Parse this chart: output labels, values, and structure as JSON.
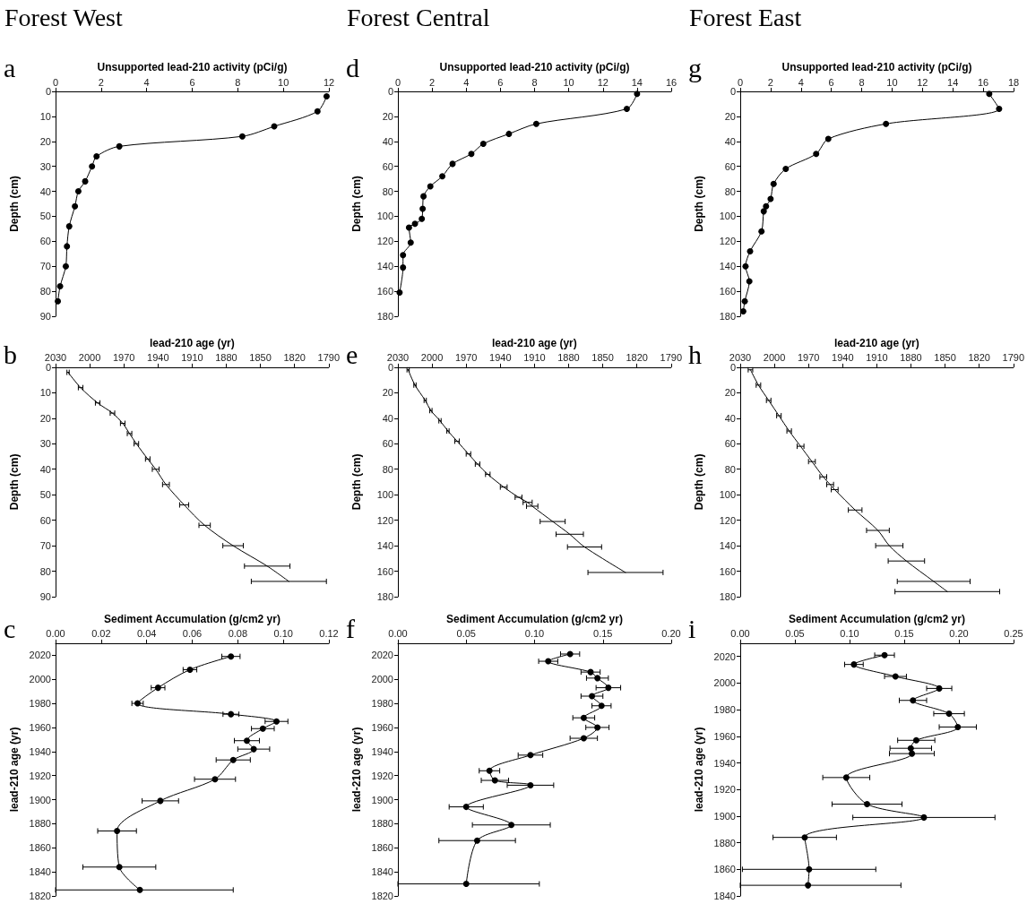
{
  "chart_data": [
    {
      "type": "line",
      "title": "Forest West",
      "xlabel": "Unsupported lead-210 activity (pCi/g)",
      "ylabel": "Depth (cm)",
      "annotations": [
        "a"
      ],
      "color": "#000000",
      "marker": "circle",
      "x": [
        11.9,
        11.5,
        9.6,
        8.2,
        2.8,
        1.8,
        1.6,
        1.3,
        1.0,
        0.85,
        0.6,
        0.5,
        0.45,
        0.2,
        0.1
      ],
      "values": [
        2,
        8,
        14,
        18,
        22,
        26,
        30,
        36,
        40,
        46,
        54,
        62,
        70,
        78,
        84
      ],
      "xlim": [
        0,
        12
      ],
      "xticks": [
        0,
        2,
        4,
        6,
        8,
        10,
        12
      ],
      "ylim": [
        90,
        0
      ],
      "yticks": [
        0,
        10,
        20,
        30,
        40,
        50,
        60,
        70,
        80,
        90
      ]
    },
    {
      "type": "line",
      "title": "Forest Central",
      "xlabel": "Unsupported lead-210 activity (pCi/g)",
      "ylabel": "Depth (cm)",
      "annotations": [
        "d"
      ],
      "color": "#000000",
      "marker": "circle",
      "x": [
        14.0,
        13.4,
        8.1,
        6.5,
        5.0,
        4.3,
        3.2,
        2.6,
        1.9,
        1.5,
        1.45,
        1.4,
        1.0,
        0.65,
        0.75,
        0.3,
        0.3,
        0.1
      ],
      "values": [
        2,
        14,
        26,
        34,
        42,
        50,
        58,
        68,
        76,
        84,
        94,
        102,
        106,
        109,
        121,
        131,
        141,
        161
      ],
      "xlim": [
        0,
        16
      ],
      "xticks": [
        0,
        2,
        4,
        6,
        8,
        10,
        12,
        14,
        16
      ],
      "ylim": [
        180,
        0
      ],
      "yticks": [
        0,
        20,
        40,
        60,
        80,
        100,
        120,
        140,
        160,
        180
      ]
    },
    {
      "type": "line",
      "title": "Forest East",
      "xlabel": "Unsupported lead-210 activity (pCi/g)",
      "ylabel": "Depth (cm)",
      "annotations": [
        "g"
      ],
      "color": "#000000",
      "marker": "circle",
      "x": [
        16.4,
        17.05,
        9.6,
        5.8,
        5.0,
        3.0,
        2.2,
        2.0,
        1.7,
        1.55,
        1.4,
        0.65,
        0.35,
        0.6,
        0.3,
        0.2
      ],
      "values": [
        2,
        14,
        26,
        38,
        50,
        62,
        74,
        86,
        92,
        96,
        112,
        128,
        140,
        152,
        168,
        176
      ],
      "xlim": [
        0,
        18
      ],
      "xticks": [
        0,
        2,
        4,
        6,
        8,
        10,
        12,
        14,
        16,
        18
      ],
      "ylim": [
        180,
        0
      ],
      "yticks": [
        0,
        20,
        40,
        60,
        80,
        100,
        120,
        140,
        160,
        180
      ]
    },
    {
      "type": "line",
      "xlabel": "lead-210 age (yr)",
      "ylabel": "Depth (cm)",
      "annotations": [
        "b"
      ],
      "color": "#000000",
      "marker": "none",
      "x": [
        2019,
        2008,
        1993,
        1980,
        1971,
        1965,
        1959,
        1949,
        1942,
        1933,
        1917,
        1899,
        1874,
        1844,
        1825
      ],
      "values": [
        2,
        8,
        14,
        18,
        22,
        26,
        30,
        36,
        40,
        46,
        54,
        62,
        70,
        78,
        84
      ],
      "xerrors": [
        1,
        2,
        2,
        2,
        2,
        2,
        2,
        2,
        3,
        3,
        4,
        5,
        9,
        20,
        33
      ],
      "xlim": [
        2030,
        1790
      ],
      "xticks": [
        2030,
        2000,
        1970,
        1940,
        1910,
        1880,
        1850,
        1820,
        1790
      ],
      "ylim": [
        90,
        0
      ],
      "yticks": [
        0,
        10,
        20,
        30,
        40,
        50,
        60,
        70,
        80,
        90
      ]
    },
    {
      "type": "line",
      "xlabel": "lead-210 age (yr)",
      "ylabel": "Depth (cm)",
      "annotations": [
        "e"
      ],
      "color": "#000000",
      "marker": "none",
      "x": [
        2021,
        2015,
        2006,
        2001,
        1993,
        1986,
        1978,
        1968,
        1960,
        1951,
        1937,
        1924,
        1916,
        1912,
        1894,
        1879,
        1866,
        1830
      ],
      "values": [
        2,
        14,
        26,
        34,
        42,
        50,
        58,
        68,
        76,
        84,
        94,
        102,
        106,
        109,
        121,
        131,
        141,
        161
      ],
      "xerrors": [
        1,
        1,
        1,
        1,
        1,
        1,
        2,
        2,
        2,
        2,
        3,
        3,
        4,
        5,
        11,
        12,
        15,
        33
      ],
      "xlim": [
        2030,
        1790
      ],
      "xticks": [
        2030,
        2000,
        1970,
        1940,
        1910,
        1880,
        1850,
        1820,
        1790
      ],
      "ylim": [
        180,
        0
      ],
      "yticks": [
        0,
        20,
        40,
        60,
        80,
        100,
        120,
        140,
        160,
        180
      ]
    },
    {
      "type": "line",
      "xlabel": "lead-210 age (yr)",
      "ylabel": "Depth (cm)",
      "annotations": [
        "h"
      ],
      "color": "#000000",
      "marker": "none",
      "x": [
        2021,
        2014,
        2005,
        1996,
        1987,
        1977,
        1967,
        1957,
        1951,
        1947,
        1929,
        1909,
        1899,
        1884,
        1860,
        1848
      ],
      "values": [
        2,
        14,
        26,
        38,
        50,
        62,
        74,
        86,
        92,
        96,
        112,
        128,
        140,
        152,
        168,
        176
      ],
      "xerrors": [
        2,
        2,
        2,
        2,
        2,
        3,
        3,
        3,
        3,
        3,
        6,
        10,
        12,
        16,
        32,
        46
      ],
      "xlim": [
        2030,
        1790
      ],
      "xticks": [
        2030,
        2000,
        1970,
        1940,
        1910,
        1880,
        1850,
        1820,
        1790
      ],
      "ylim": [
        180,
        0
      ],
      "yticks": [
        0,
        20,
        40,
        60,
        80,
        100,
        120,
        140,
        160,
        180
      ]
    },
    {
      "type": "line",
      "xlabel": "Sediment Accumulation (g/cm2 yr)",
      "ylabel": "lead-210 age (yr)",
      "annotations": [
        "c"
      ],
      "color": "#000000",
      "marker": "circle",
      "x": [
        0.077,
        0.059,
        0.045,
        0.036,
        0.077,
        0.097,
        0.091,
        0.084,
        0.087,
        0.078,
        0.07,
        0.046,
        0.027,
        0.028,
        0.037
      ],
      "values": [
        2019,
        2008,
        1993,
        1980,
        1971,
        1965,
        1959,
        1949,
        1942,
        1933,
        1917,
        1899,
        1874,
        1844,
        1825
      ],
      "xerrors": [
        0.004,
        0.003,
        0.003,
        0.0025,
        0.0035,
        0.005,
        0.005,
        0.0055,
        0.007,
        0.0075,
        0.009,
        0.008,
        0.0085,
        0.016,
        [
          0,
          0.078
        ]
      ],
      "xlim": [
        0,
        0.12
      ],
      "xticks": [
        {
          "value": 0,
          "label": "0.00"
        },
        {
          "value": 0.02,
          "label": "0.02"
        },
        {
          "value": 0.04,
          "label": "0.04"
        },
        {
          "value": 0.06,
          "label": "0.06"
        },
        {
          "value": 0.08,
          "label": "0.08"
        },
        {
          "value": 0.1,
          "label": "0.10"
        },
        {
          "value": 0.12,
          "label": "0.12"
        }
      ],
      "ylim": [
        1820,
        2030
      ],
      "yticks": [
        1820,
        1840,
        1860,
        1880,
        1900,
        1920,
        1940,
        1960,
        1980,
        2000,
        2020
      ]
    },
    {
      "type": "line",
      "xlabel": "Sediment Accumulation (g/cm2 yr)",
      "ylabel": "lead-210 age (yr)",
      "annotations": [
        "f"
      ],
      "color": "#000000",
      "marker": "circle",
      "x": [
        0.126,
        0.11,
        0.141,
        0.146,
        0.154,
        0.142,
        0.149,
        0.136,
        0.146,
        0.136,
        0.097,
        0.067,
        0.071,
        0.097,
        0.05,
        0.083,
        0.058,
        0.05
      ],
      "values": [
        2021,
        2015,
        2006,
        2001,
        1993,
        1986,
        1978,
        1968,
        1960,
        1951,
        1937,
        1924,
        1916,
        1912,
        1894,
        1879,
        1866,
        1830
      ],
      "xerrors": [
        0.007,
        0.007,
        0.007,
        0.008,
        0.009,
        0.008,
        0.007,
        0.008,
        0.0085,
        0.01,
        0.009,
        0.0075,
        0.01,
        0.017,
        0.0125,
        0.0285,
        0.028,
        [
          0,
          0.1035
        ]
      ],
      "xlim": [
        0,
        0.2
      ],
      "xticks": [
        {
          "value": 0,
          "label": "0.00"
        },
        {
          "value": 0.05,
          "label": "0.05"
        },
        {
          "value": 0.1,
          "label": "0.10"
        },
        {
          "value": 0.15,
          "label": "0.15"
        },
        {
          "value": 0.2,
          "label": "0.20"
        }
      ],
      "ylim": [
        1820,
        2030
      ],
      "yticks": [
        1820,
        1840,
        1860,
        1880,
        1900,
        1920,
        1940,
        1960,
        1980,
        2000,
        2020
      ]
    },
    {
      "type": "line",
      "xlabel": "Sediment Accumulation (g/cm2 yr)",
      "ylabel": "lead-210 age (yr)",
      "annotations": [
        "i"
      ],
      "color": "#000000",
      "marker": "circle",
      "x": [
        0.132,
        0.104,
        0.142,
        0.182,
        0.158,
        0.191,
        0.199,
        0.161,
        0.156,
        0.157,
        0.097,
        0.116,
        0.168,
        0.059,
        0.063,
        0.062
      ],
      "values": [
        2021,
        2014,
        2005,
        1996,
        1987,
        1977,
        1967,
        1957,
        1951,
        1947,
        1929,
        1909,
        1899,
        1884,
        1860,
        1848
      ],
      "xerrors": [
        0.009,
        0.0085,
        0.01,
        0.0115,
        0.0125,
        0.014,
        0.017,
        0.017,
        0.019,
        0.0205,
        0.0215,
        0.032,
        0.065,
        0.029,
        0.061,
        [
          0,
          0.147
        ]
      ],
      "xlim": [
        0,
        0.25
      ],
      "xticks": [
        {
          "value": 0,
          "label": "0.00"
        },
        {
          "value": 0.05,
          "label": "0.05"
        },
        {
          "value": 0.1,
          "label": "0.10"
        },
        {
          "value": 0.15,
          "label": "0.15"
        },
        {
          "value": 0.2,
          "label": "0.20"
        },
        {
          "value": 0.25,
          "label": "0.25"
        }
      ],
      "ylim": [
        1840,
        2030
      ],
      "yticks": [
        1840,
        1860,
        1880,
        1900,
        1920,
        1940,
        1960,
        1980,
        2000,
        2020
      ]
    }
  ]
}
